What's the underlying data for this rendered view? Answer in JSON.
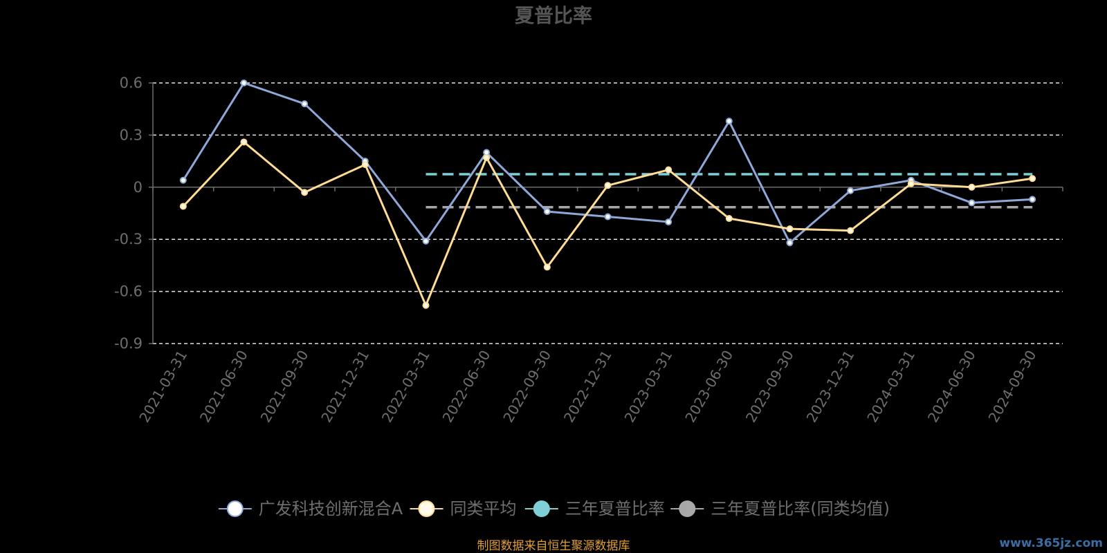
{
  "chart_data": {
    "type": "line",
    "title": "夏普比率",
    "x": [
      "2021-03-31",
      "2021-06-30",
      "2021-09-30",
      "2021-12-31",
      "2022-03-31",
      "2022-06-30",
      "2022-09-30",
      "2022-12-31",
      "2023-03-31",
      "2023-06-30",
      "2023-09-30",
      "2023-12-31",
      "2024-03-31",
      "2024-06-30",
      "2024-09-30"
    ],
    "yticks": [
      "0.6",
      "0.3",
      "0",
      "-0.3",
      "-0.6",
      "-0.9"
    ],
    "ylim": [
      -0.9,
      0.6
    ],
    "grid": true,
    "legend_position": "bottom",
    "series": [
      {
        "name": "广发科技创新混合A",
        "color": "#8fa8d8",
        "values": [
          0.04,
          0.6,
          0.48,
          0.15,
          -0.31,
          0.2,
          -0.14,
          -0.17,
          -0.2,
          0.38,
          -0.32,
          -0.02,
          0.04,
          -0.09,
          -0.07
        ]
      },
      {
        "name": "同类平均",
        "color": "#ffdc96",
        "values": [
          -0.11,
          0.26,
          -0.03,
          0.13,
          -0.68,
          0.17,
          -0.46,
          0.01,
          0.1,
          -0.18,
          -0.24,
          -0.25,
          0.02,
          0.0,
          0.05
        ]
      }
    ],
    "reference_lines": [
      {
        "name": "三年夏普比率",
        "color": "#7ed0d6",
        "value": 0.075,
        "x_start": "2022-03-31",
        "x_end": "2024-09-30"
      },
      {
        "name": "三年夏普比率(同类均值)",
        "color": "#a8a8a8",
        "value": -0.115,
        "x_start": "2022-03-31",
        "x_end": "2024-09-30"
      }
    ]
  },
  "legend": {
    "items": [
      {
        "label": "广发科技创新混合A",
        "marker_color": "#ffffff",
        "line_color": "#8fa8d8"
      },
      {
        "label": "同类平均",
        "marker_color": "#fffbea",
        "line_color": "#ffdc96"
      },
      {
        "label": "三年夏普比率",
        "marker_color": "#7ed0d6",
        "line_color": "#7ed0d6"
      },
      {
        "label": "三年夏普比率(同类均值)",
        "marker_color": "#a8a8a8",
        "line_color": "#a8a8a8"
      }
    ]
  },
  "footer": {
    "source": "制图数据来自恒生聚源数据库",
    "watermark": "www.365jz.com"
  }
}
